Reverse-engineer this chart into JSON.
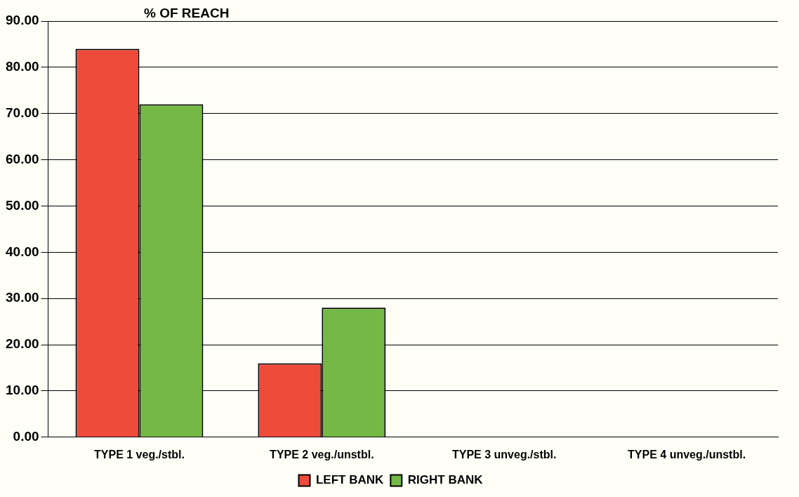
{
  "chart_data": {
    "type": "bar",
    "title": "% OF REACH",
    "categories": [
      "TYPE 1 veg./stbl.",
      "TYPE 2 veg./unstbl.",
      "TYPE 3 unveg./stbl.",
      "TYPE 4 unveg./unstbl."
    ],
    "series": [
      {
        "name": "LEFT BANK",
        "color": "#ef4b3b",
        "values": [
          84,
          16,
          0,
          0
        ]
      },
      {
        "name": "RIGHT BANK",
        "color": "#74b845",
        "values": [
          72,
          28,
          0,
          0
        ]
      }
    ],
    "ylim": [
      0,
      90
    ],
    "yticks": [
      {
        "value": 0,
        "label": "0.00"
      },
      {
        "value": 10,
        "label": "10.00"
      },
      {
        "value": 20,
        "label": "20.00"
      },
      {
        "value": 30,
        "label": "30.00"
      },
      {
        "value": 40,
        "label": "40.00"
      },
      {
        "value": 50,
        "label": "50.00"
      },
      {
        "value": 60,
        "label": "60.00"
      },
      {
        "value": 70,
        "label": "70.00"
      },
      {
        "value": 80,
        "label": "80.00"
      },
      {
        "value": 90,
        "label": "90.00"
      }
    ],
    "grid": "y",
    "legend": "bottom"
  }
}
